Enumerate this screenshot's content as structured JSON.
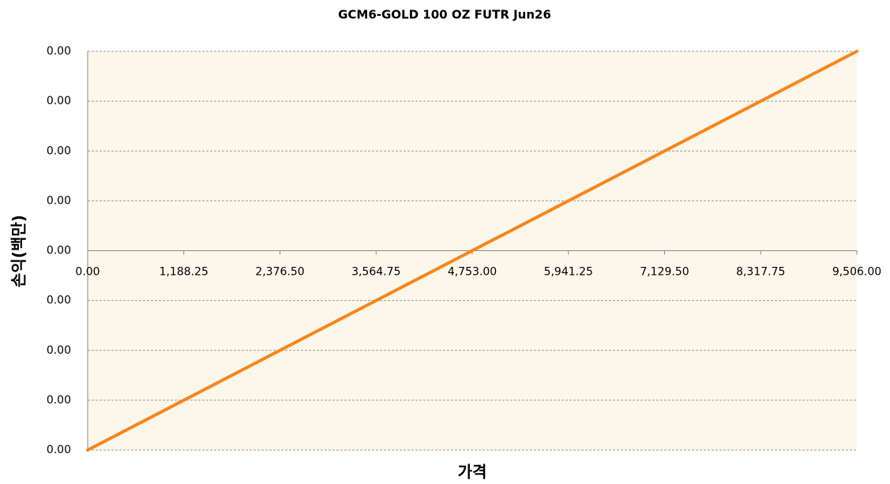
{
  "chart_data": {
    "type": "line",
    "title": "GCM6-GOLD 100 OZ FUTR Jun26",
    "xlabel": "가격",
    "ylabel": "손익(백만)",
    "x": [
      0,
      9506
    ],
    "values": [
      -0.004,
      0.004
    ],
    "color": "#f7861c",
    "xlim": [
      0,
      9506
    ],
    "xticks": [
      {
        "value": 0,
        "label": "0.00"
      },
      {
        "value": 1188.25,
        "label": "1,188.25"
      },
      {
        "value": 2376.5,
        "label": "2,376.50"
      },
      {
        "value": 3564.75,
        "label": "3,564.75"
      },
      {
        "value": 4753,
        "label": "4,753.00"
      },
      {
        "value": 5941.25,
        "label": "5,941.25"
      },
      {
        "value": 7129.5,
        "label": "7,129.50"
      },
      {
        "value": 8317.75,
        "label": "8,317.75"
      },
      {
        "value": 9506,
        "label": "9,506.00"
      }
    ],
    "ylim": [
      -0.004,
      0.004
    ],
    "yticks": [
      {
        "value": -0.004,
        "label": "0.00"
      },
      {
        "value": -0.003,
        "label": "0.00"
      },
      {
        "value": -0.002,
        "label": "0.00"
      },
      {
        "value": -0.001,
        "label": "0.00"
      },
      {
        "value": 0,
        "label": "0.00"
      },
      {
        "value": 0.001,
        "label": "0.00"
      },
      {
        "value": 0.002,
        "label": "0.00"
      },
      {
        "value": 0.003,
        "label": "0.00"
      },
      {
        "value": 0.004,
        "label": "0.00"
      }
    ],
    "grid": true
  }
}
